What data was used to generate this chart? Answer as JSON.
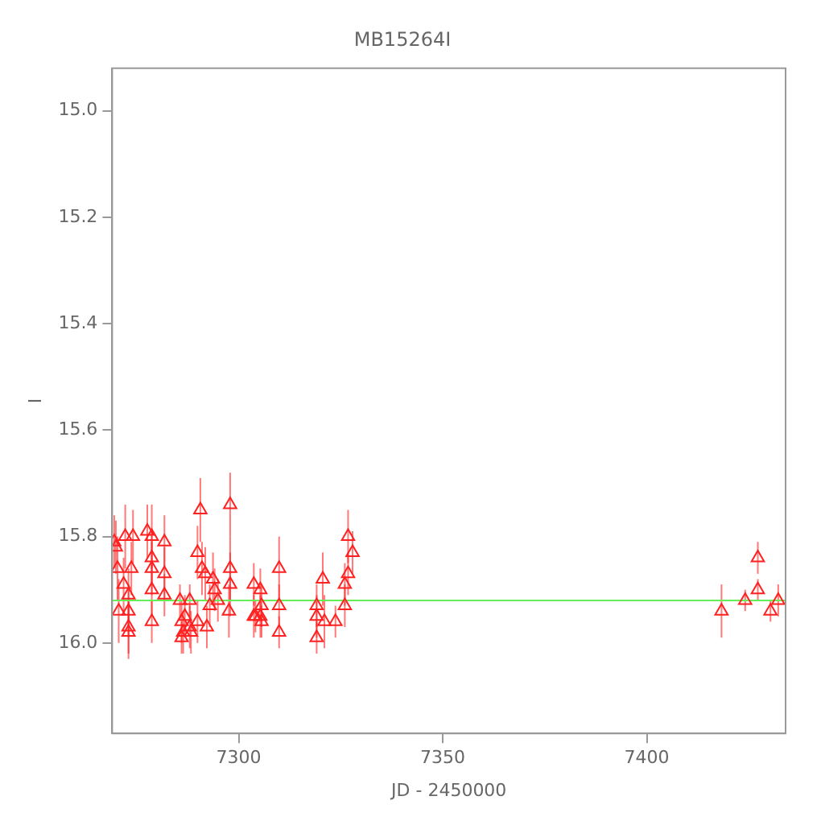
{
  "chart_data": {
    "type": "scatter",
    "title": "MB15264I",
    "xlabel": "JD - 2450000",
    "ylabel": "I",
    "xlim": [
      7269,
      7434
    ],
    "ylim": [
      16.17,
      14.92
    ],
    "xticks": [
      7300,
      7350,
      7400
    ],
    "yticks": [
      {
        "value": 15.0,
        "label": "15.0"
      },
      {
        "value": 15.2,
        "label": "15.2"
      },
      {
        "value": 15.4,
        "label": "15.4"
      },
      {
        "value": 15.6,
        "label": "15.6"
      },
      {
        "value": 15.8,
        "label": "15.8"
      },
      {
        "value": 16.0,
        "label": "16.0"
      }
    ],
    "grid": false,
    "legend": false,
    "marker": "triangle",
    "line_style": "none",
    "ref_lines": [
      {
        "axis": "y",
        "value": 15.92,
        "color": "#66ee55"
      }
    ],
    "series": [
      {
        "color": "#ff2020",
        "x": [
          7269.5,
          7269.9,
          7270.3,
          7272.2,
          7271.8,
          7274.1,
          7273.7,
          7273.0,
          7270.6,
          7273.0,
          7273.0,
          7273.0,
          7277.6,
          7278.7,
          7278.7,
          7278.7,
          7278.7,
          7278.7,
          7281.8,
          7281.8,
          7281.8,
          7290.6,
          7297.9,
          7289.9,
          7291.0,
          7291.8,
          7293.7,
          7294.9,
          7294.1,
          7292.9,
          7285.6,
          7288.0,
          7286.0,
          7286.8,
          7286.4,
          7286.0,
          7288.0,
          7288.3,
          7289.9,
          7292.2,
          7297.9,
          7297.9,
          7297.6,
          7303.7,
          7303.7,
          7305.3,
          7305.3,
          7305.6,
          7304.1,
          7305.6,
          7309.9,
          7309.9,
          7309.9,
          7320.6,
          7319.1,
          7319.1,
          7321.0,
          7319.1,
          7323.7,
          7326.0,
          7326.0,
          7326.8,
          7327.9,
          7326.8,
          7418.3,
          7424.1,
          7427.2,
          7427.2,
          7430.3,
          7432.2
        ],
        "values": [
          15.81,
          15.82,
          15.86,
          15.8,
          15.89,
          15.8,
          15.86,
          15.91,
          15.94,
          15.94,
          15.97,
          15.98,
          15.79,
          15.8,
          15.84,
          15.86,
          15.9,
          15.96,
          15.81,
          15.87,
          15.91,
          15.75,
          15.74,
          15.83,
          15.86,
          15.87,
          15.88,
          15.92,
          15.9,
          15.93,
          15.92,
          15.92,
          15.96,
          15.95,
          15.98,
          15.99,
          15.97,
          15.98,
          15.96,
          15.97,
          15.86,
          15.89,
          15.94,
          15.89,
          15.95,
          15.95,
          15.9,
          15.93,
          15.95,
          15.96,
          15.86,
          15.93,
          15.98,
          15.88,
          15.93,
          15.95,
          15.96,
          15.99,
          15.96,
          15.89,
          15.93,
          15.8,
          15.83,
          15.87,
          15.94,
          15.92,
          15.84,
          15.9,
          15.94,
          15.92
        ],
        "errors": [
          0.05,
          0.05,
          0.06,
          0.06,
          0.05,
          0.05,
          0.05,
          0.05,
          0.06,
          0.05,
          0.05,
          0.05,
          0.05,
          0.06,
          0.05,
          0.05,
          0.05,
          0.04,
          0.05,
          0.05,
          0.04,
          0.06,
          0.06,
          0.05,
          0.05,
          0.05,
          0.05,
          0.04,
          0.04,
          0.04,
          0.03,
          0.03,
          0.04,
          0.04,
          0.04,
          0.03,
          0.04,
          0.04,
          0.04,
          0.04,
          0.06,
          0.06,
          0.05,
          0.04,
          0.04,
          0.04,
          0.04,
          0.04,
          0.03,
          0.03,
          0.06,
          0.04,
          0.03,
          0.05,
          0.04,
          0.04,
          0.05,
          0.03,
          0.03,
          0.04,
          0.04,
          0.05,
          0.04,
          0.04,
          0.05,
          0.02,
          0.03,
          0.02,
          0.02,
          0.03
        ]
      }
    ]
  }
}
